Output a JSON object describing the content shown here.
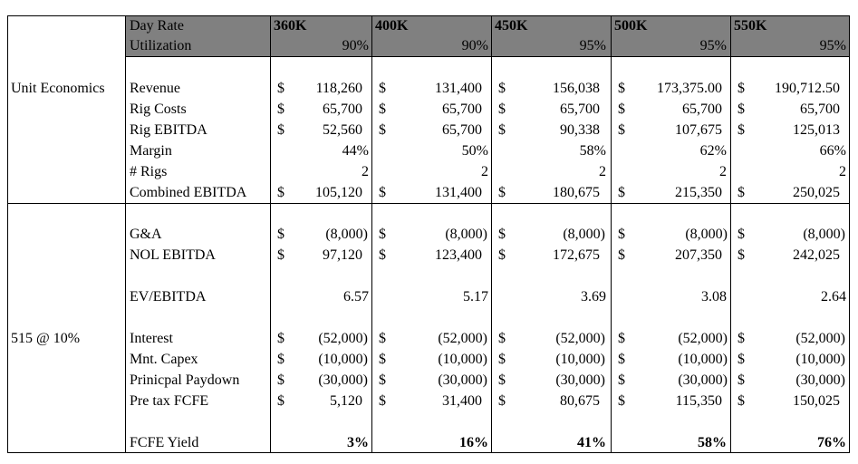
{
  "header": {
    "day_rate_label": "Day Rate",
    "utilization_label": "Utilization",
    "columns": [
      {
        "rate": "360K",
        "utilization": "90%"
      },
      {
        "rate": "400K",
        "utilization": "90%"
      },
      {
        "rate": "450K",
        "utilization": "95%"
      },
      {
        "rate": "500K",
        "utilization": "95%"
      },
      {
        "rate": "550K",
        "utilization": "95%"
      }
    ]
  },
  "section_labels": {
    "unit_economics": "Unit Economics",
    "debt": "515 @ 10%"
  },
  "currency_symbol": "$",
  "rows": [
    {
      "label": "Revenue",
      "dollar": true,
      "values": [
        "118,260",
        "131,400",
        "156,038",
        "173,375.00",
        "190,712.50"
      ]
    },
    {
      "label": "Rig Costs",
      "dollar": true,
      "values": [
        "65,700",
        "65,700",
        "65,700",
        "65,700",
        "65,700"
      ]
    },
    {
      "label": "Rig EBITDA",
      "dollar": true,
      "values": [
        "52,560",
        "65,700",
        "90,338",
        "107,675",
        "125,013"
      ]
    },
    {
      "label": "Margin",
      "dollar": false,
      "values": [
        "44%",
        "50%",
        "58%",
        "62%",
        "66%"
      ]
    },
    {
      "label": "# Rigs",
      "dollar": false,
      "values": [
        "2",
        "2",
        "2",
        "2",
        "2"
      ]
    },
    {
      "label": "Combined EBITDA",
      "dollar": true,
      "values": [
        "105,120",
        "131,400",
        "180,675",
        "215,350",
        "250,025"
      ]
    },
    {
      "label": "G&A",
      "dollar": true,
      "values": [
        "(8,000)",
        "(8,000)",
        "(8,000)",
        "(8,000)",
        "(8,000)"
      ]
    },
    {
      "label": "NOL EBITDA",
      "dollar": true,
      "values": [
        "97,120",
        "123,400",
        "172,675",
        "207,350",
        "242,025"
      ]
    },
    {
      "label": "EV/EBITDA",
      "dollar": false,
      "values": [
        "6.57",
        "5.17",
        "3.69",
        "3.08",
        "2.64"
      ]
    },
    {
      "label": "Interest",
      "dollar": true,
      "values": [
        "(52,000)",
        "(52,000)",
        "(52,000)",
        "(52,000)",
        "(52,000)"
      ]
    },
    {
      "label": "Mnt. Capex",
      "dollar": true,
      "values": [
        "(10,000)",
        "(10,000)",
        "(10,000)",
        "(10,000)",
        "(10,000)"
      ]
    },
    {
      "label": "Prinicpal Paydown",
      "dollar": true,
      "values": [
        "(30,000)",
        "(30,000)",
        "(30,000)",
        "(30,000)",
        "(30,000)"
      ]
    },
    {
      "label": "Pre tax FCFE",
      "dollar": true,
      "values": [
        "5,120",
        "31,400",
        "80,675",
        "115,350",
        "150,025"
      ]
    },
    {
      "label": "FCFE Yield",
      "dollar": false,
      "bold": true,
      "values": [
        "3%",
        "16%",
        "41%",
        "58%",
        "76%"
      ]
    }
  ]
}
